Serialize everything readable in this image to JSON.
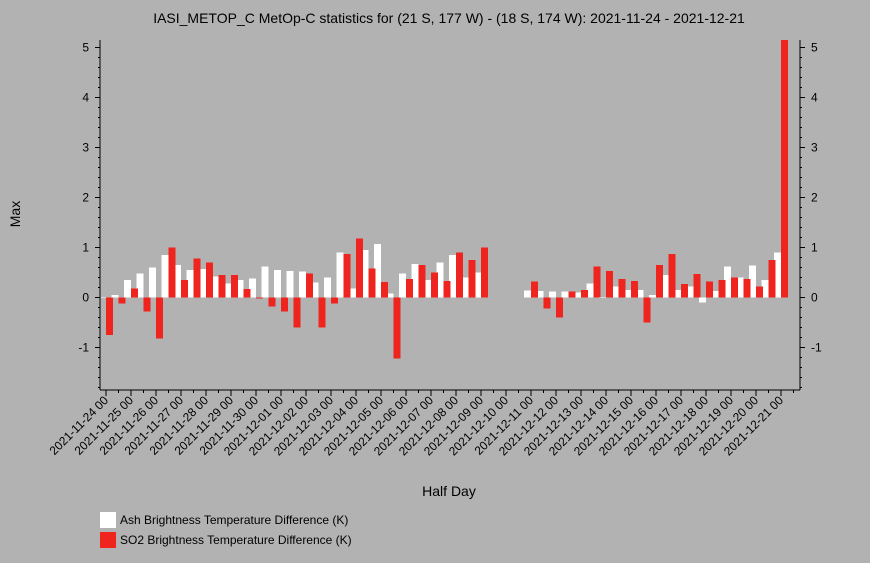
{
  "chart_data": {
    "type": "bar",
    "title": "IASI_METOP_C MetOp-C statistics for (21 S, 177 W) - (18 S, 174 W): 2021-11-24 - 2021-12-21",
    "xlabel": "Half Day",
    "ylabel": "Max",
    "ylim": [
      -1.85,
      5.15
    ],
    "yticks": [
      -1,
      0,
      1,
      2,
      3,
      4,
      5
    ],
    "grid": false,
    "legend_position": "bottom-left",
    "categories": [
      "2021-11-24 00",
      "2021-11-24 12",
      "2021-11-25 00",
      "2021-11-25 12",
      "2021-11-26 00",
      "2021-11-26 12",
      "2021-11-27 00",
      "2021-11-27 12",
      "2021-11-28 00",
      "2021-11-28 12",
      "2021-11-29 00",
      "2021-11-29 12",
      "2021-11-30 00",
      "2021-11-30 12",
      "2021-12-01 00",
      "2021-12-01 12",
      "2021-12-02 00",
      "2021-12-02 12",
      "2021-12-03 00",
      "2021-12-03 12",
      "2021-12-04 00",
      "2021-12-04 12",
      "2021-12-05 00",
      "2021-12-05 12",
      "2021-12-06 00",
      "2021-12-06 12",
      "2021-12-07 00",
      "2021-12-07 12",
      "2021-12-08 00",
      "2021-12-08 12",
      "2021-12-09 00",
      "2021-12-09 12",
      "2021-12-10 00",
      "2021-12-10 12",
      "2021-12-11 00",
      "2021-12-11 12",
      "2021-12-12 00",
      "2021-12-12 12",
      "2021-12-13 00",
      "2021-12-13 12",
      "2021-12-14 00",
      "2021-12-14 12",
      "2021-12-15 00",
      "2021-12-15 12",
      "2021-12-16 00",
      "2021-12-16 12",
      "2021-12-17 00",
      "2021-12-17 12",
      "2021-12-18 00",
      "2021-12-18 12",
      "2021-12-19 00",
      "2021-12-19 12",
      "2021-12-20 00",
      "2021-12-20 12",
      "2021-12-21 00",
      "2021-12-21 12"
    ],
    "tick_labels": [
      "2021-11-24 00",
      "2021-11-25 00",
      "2021-11-26 00",
      "2021-11-27 00",
      "2021-11-28 00",
      "2021-11-29 00",
      "2021-11-30 00",
      "2021-12-01 00",
      "2021-12-02 00",
      "2021-12-03 00",
      "2021-12-04 00",
      "2021-12-05 00",
      "2021-12-06 00",
      "2021-12-07 00",
      "2021-12-08 00",
      "2021-12-09 00",
      "2021-12-10 00",
      "2021-12-11 00",
      "2021-12-12 00",
      "2021-12-13 00",
      "2021-12-14 00",
      "2021-12-15 00",
      "2021-12-16 00",
      "2021-12-17 00",
      "2021-12-18 00",
      "2021-12-19 00",
      "2021-12-20 00",
      "2021-12-21 00"
    ],
    "series": [
      {
        "name": "Ash Brightness Temperature Difference (K)",
        "color": "#ffffff",
        "values": [
          0.0,
          0.05,
          0.35,
          0.48,
          0.6,
          0.85,
          0.65,
          0.55,
          0.57,
          0.42,
          0.28,
          0.35,
          0.38,
          0.62,
          0.55,
          0.53,
          0.52,
          0.3,
          0.4,
          0.9,
          0.18,
          0.95,
          1.07,
          0.08,
          0.48,
          0.67,
          0.35,
          0.7,
          0.85,
          0.4,
          0.5,
          null,
          null,
          null,
          0.14,
          0.13,
          0.12,
          0.12,
          0.1,
          0.28,
          0.0,
          0.22,
          0.15,
          0.15,
          0.05,
          0.45,
          0.15,
          0.22,
          -0.1,
          0.13,
          0.62,
          0.4,
          0.64,
          0.35,
          0.9,
          null
        ]
      },
      {
        "name": "SO2 Brightness Temperature Difference (K)",
        "color": "#f0241e",
        "values": [
          -0.75,
          -0.12,
          0.18,
          -0.28,
          -0.82,
          1.0,
          0.35,
          0.78,
          0.7,
          0.45,
          0.45,
          0.17,
          -0.02,
          -0.18,
          -0.28,
          -0.6,
          0.48,
          -0.6,
          -0.12,
          0.87,
          1.18,
          0.58,
          0.31,
          -1.22,
          0.37,
          0.65,
          0.5,
          0.33,
          0.9,
          0.75,
          1.0,
          null,
          null,
          null,
          0.32,
          -0.22,
          -0.4,
          0.12,
          0.15,
          0.62,
          0.53,
          0.37,
          0.33,
          -0.5,
          0.65,
          0.87,
          0.27,
          0.47,
          0.32,
          0.35,
          0.4,
          0.37,
          0.22,
          0.75,
          5.15,
          null
        ]
      }
    ]
  }
}
